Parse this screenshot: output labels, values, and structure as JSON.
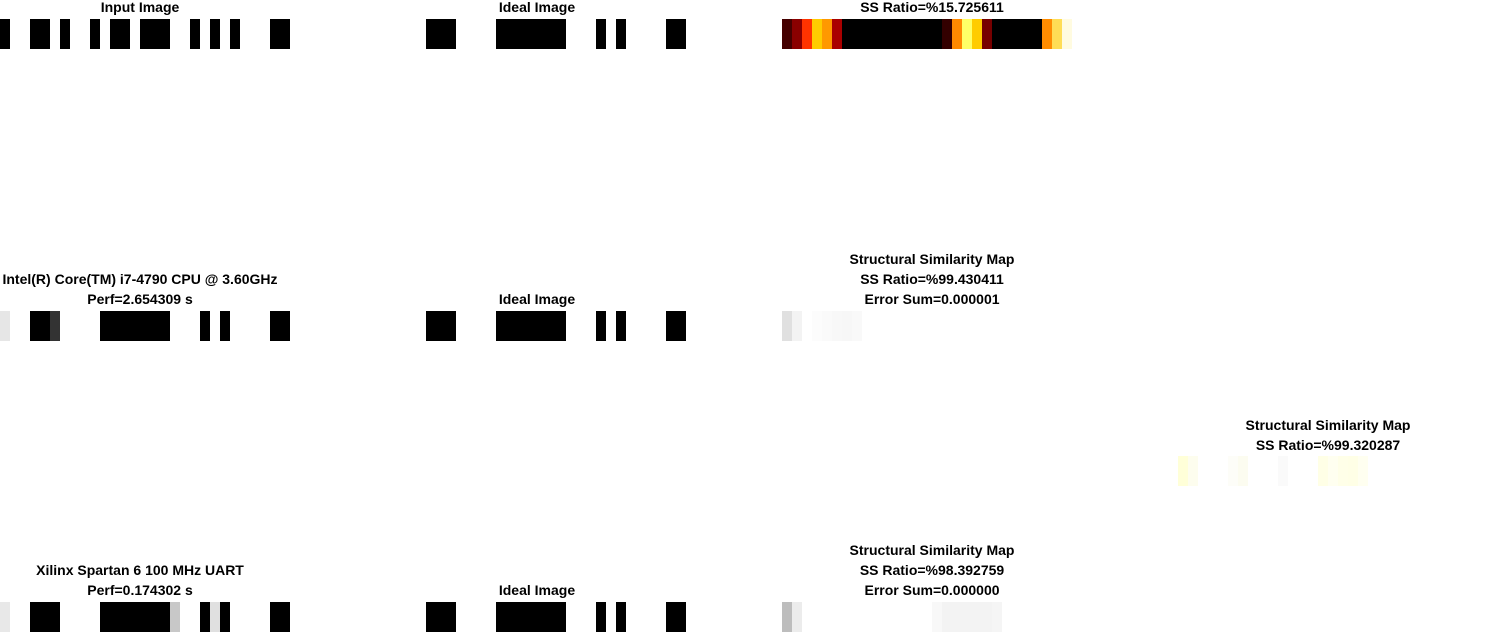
{
  "colors": {
    "background": "#ffffff",
    "text": "#000000"
  },
  "panels": [
    {
      "id": "row1-input",
      "title_lines": [
        "Input Image"
      ],
      "cells": [
        "#000000",
        "#ffffff",
        "#ffffff",
        "#000000",
        "#000000",
        "#ffffff",
        "#000000",
        "#ffffff",
        "#ffffff",
        "#000000",
        "#ffffff",
        "#000000",
        "#000000",
        "#ffffff",
        "#000000",
        "#000000",
        "#000000",
        "#ffffff",
        "#ffffff",
        "#000000",
        "#ffffff",
        "#000000",
        "#ffffff",
        "#000000",
        "#ffffff",
        "#ffffff",
        "#ffffff",
        "#000000",
        "#000000"
      ]
    },
    {
      "id": "row1-ideal",
      "title_lines": [
        "Ideal Image"
      ],
      "cells": [
        "#000000",
        "#000000",
        "#000000",
        "#ffffff",
        "#ffffff",
        "#ffffff",
        "#ffffff",
        "#000000",
        "#000000",
        "#000000",
        "#000000",
        "#000000",
        "#000000",
        "#000000",
        "#ffffff",
        "#ffffff",
        "#ffffff",
        "#000000",
        "#ffffff",
        "#000000",
        "#ffffff",
        "#ffffff",
        "#ffffff",
        "#ffffff",
        "#000000",
        "#000000"
      ]
    },
    {
      "id": "row1-ssmap",
      "title_lines": [
        "SS Ratio=%15.725611"
      ],
      "cells": [
        "#450000",
        "#8a0000",
        "#ff3300",
        "#ffcc00",
        "#ff9900",
        "#aa0000",
        "#000000",
        "#000000",
        "#000000",
        "#000000",
        "#000000",
        "#000000",
        "#000000",
        "#000000",
        "#000000",
        "#000000",
        "#330000",
        "#ff8800",
        "#ffff66",
        "#ffcc00",
        "#770000",
        "#000000",
        "#000000",
        "#000000",
        "#000000",
        "#000000",
        "#ff8c00",
        "#ffdd55",
        "#fffbe0",
        "#ffffff"
      ]
    },
    {
      "id": "row2-cpu",
      "title_lines": [
        "Intel(R) Core(TM) i7-4790 CPU @ 3.60GHz",
        "Perf=2.654309 s"
      ],
      "cells": [
        "#e6e6e6",
        "#ffffff",
        "#ffffff",
        "#000000",
        "#000000",
        "#333333",
        "#ffffff",
        "#ffffff",
        "#ffffff",
        "#ffffff",
        "#000000",
        "#000000",
        "#000000",
        "#000000",
        "#000000",
        "#000000",
        "#000000",
        "#ffffff",
        "#ffffff",
        "#ffffff",
        "#000000",
        "#ffffff",
        "#000000",
        "#ffffff",
        "#ffffff",
        "#ffffff",
        "#ffffff",
        "#000000",
        "#000000"
      ]
    },
    {
      "id": "row2-ideal",
      "title_lines": [
        "Ideal Image"
      ],
      "cells": [
        "#000000",
        "#000000",
        "#000000",
        "#ffffff",
        "#ffffff",
        "#ffffff",
        "#ffffff",
        "#000000",
        "#000000",
        "#000000",
        "#000000",
        "#000000",
        "#000000",
        "#000000",
        "#ffffff",
        "#ffffff",
        "#ffffff",
        "#000000",
        "#ffffff",
        "#000000",
        "#ffffff",
        "#ffffff",
        "#ffffff",
        "#ffffff",
        "#000000",
        "#000000"
      ]
    },
    {
      "id": "row2-ssmap",
      "title_lines": [
        "Structural Similarity Map",
        "SS Ratio=%99.430411",
        "Error Sum=0.000001"
      ],
      "cells": [
        "#e0e0e0",
        "#f3f3f3",
        "#ffffff",
        "#fcfcfc",
        "#fafafa",
        "#f8f8f8",
        "#f7f7f7",
        "#f9f9f9",
        "#ffffff"
      ]
    },
    {
      "id": "row2-extra-ssmap",
      "title_lines": [
        "Structural Similarity Map",
        "SS Ratio=%99.320287"
      ],
      "cells": [
        "#ffffd8",
        "#fdfdee",
        "#ffffff",
        "#ffffff",
        "#ffffff",
        "#fdfdf8",
        "#fcfcf0",
        "#ffffff",
        "#ffffff",
        "#ffffff",
        "#fafafa",
        "#ffffff",
        "#ffffff",
        "#ffffff",
        "#ffffe6",
        "#fffff0",
        "#ffffe8",
        "#ffffe6",
        "#fffff0",
        "#ffffff",
        "#ffffff"
      ]
    },
    {
      "id": "row3-fpga",
      "title_lines": [
        "Xilinx Spartan 6 100 MHz UART",
        "Perf=0.174302 s"
      ],
      "cells": [
        "#e8e8e8",
        "#ffffff",
        "#ffffff",
        "#000000",
        "#000000",
        "#000000",
        "#ffffff",
        "#ffffff",
        "#ffffff",
        "#ffffff",
        "#000000",
        "#000000",
        "#000000",
        "#000000",
        "#000000",
        "#000000",
        "#000000",
        "#c8c8c8",
        "#ffffff",
        "#ffffff",
        "#000000",
        "#e0e0e0",
        "#000000",
        "#ffffff",
        "#ffffff",
        "#ffffff",
        "#ffffff",
        "#000000",
        "#000000"
      ]
    },
    {
      "id": "row3-ideal",
      "title_lines": [
        "Ideal Image"
      ],
      "cells": [
        "#000000",
        "#000000",
        "#000000",
        "#ffffff",
        "#ffffff",
        "#ffffff",
        "#ffffff",
        "#000000",
        "#000000",
        "#000000",
        "#000000",
        "#000000",
        "#000000",
        "#000000",
        "#ffffff",
        "#ffffff",
        "#ffffff",
        "#000000",
        "#ffffff",
        "#000000",
        "#ffffff",
        "#ffffff",
        "#ffffff",
        "#ffffff",
        "#000000",
        "#000000"
      ]
    },
    {
      "id": "row3-ssmap",
      "title_lines": [
        "Structural Similarity Map",
        "SS Ratio=%98.392759",
        "Error Sum=0.000000"
      ],
      "cells": [
        "#bdbdbd",
        "#ececec",
        "#ffffff",
        "#ffffff",
        "#ffffff",
        "#ffffff",
        "#ffffff",
        "#ffffff",
        "#ffffff",
        "#ffffff",
        "#ffffff",
        "#ffffff",
        "#ffffff",
        "#ffffff",
        "#ffffff",
        "#f8f8f8",
        "#f3f3f3",
        "#f3f3f3",
        "#f3f3f3",
        "#f3f3f3",
        "#f3f3f3",
        "#f5f5f5"
      ]
    }
  ]
}
